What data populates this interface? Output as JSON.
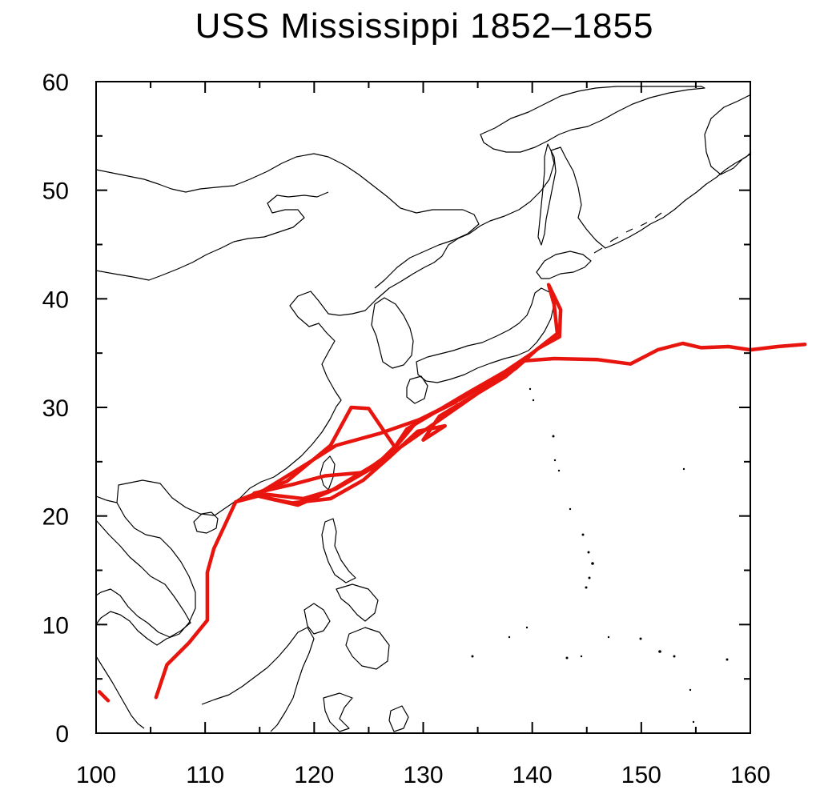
{
  "title": "USS Mississippi 1852–1855",
  "colors": {
    "route": "#e8150f",
    "frame": "#000000"
  },
  "map_data": {
    "projection": "equirectangular",
    "lon_range": [
      100,
      160
    ],
    "lat_range": [
      0,
      60
    ],
    "x_ticks": [
      100,
      110,
      120,
      130,
      140,
      150,
      160
    ],
    "y_ticks": [
      0,
      10,
      20,
      30,
      40,
      50,
      60
    ],
    "minor_step": 5,
    "route_segments": [
      [
        [
          100.3,
          3.8
        ],
        [
          101.1,
          3.0
        ]
      ],
      [
        [
          105.5,
          3.3
        ],
        [
          106.5,
          6.3
        ],
        [
          108.5,
          8.3
        ],
        [
          110.2,
          10.4
        ],
        [
          110.2,
          14.8
        ],
        [
          110.8,
          17.0
        ],
        [
          112.8,
          21.3
        ],
        [
          115.5,
          22.0
        ],
        [
          119.0,
          21.6
        ],
        [
          122.0,
          22.5
        ],
        [
          126.0,
          24.8
        ],
        [
          127.7,
          26.2
        ],
        [
          131.0,
          28.5
        ],
        [
          135.0,
          31.3
        ],
        [
          138.5,
          33.6
        ],
        [
          140.5,
          35.4
        ],
        [
          142.5,
          36.5
        ],
        [
          142.6,
          39.0
        ],
        [
          141.5,
          41.3
        ],
        [
          142.0,
          39.5
        ],
        [
          142.3,
          36.8
        ],
        [
          140.0,
          35.0
        ],
        [
          137.5,
          33.3
        ],
        [
          134.0,
          31.3
        ],
        [
          131.0,
          29.5
        ],
        [
          128.5,
          28.0
        ],
        [
          127.5,
          26.5
        ],
        [
          126.0,
          25.0
        ],
        [
          124.0,
          23.8
        ],
        [
          121.5,
          22.3
        ],
        [
          118.5,
          21.0
        ],
        [
          115.0,
          21.8
        ],
        [
          118.0,
          21.2
        ],
        [
          121.5,
          21.6
        ],
        [
          124.5,
          23.3
        ],
        [
          127.0,
          25.5
        ],
        [
          129.5,
          27.8
        ],
        [
          132.0,
          28.3
        ],
        [
          130.0,
          27.0
        ],
        [
          131.5,
          29.2
        ],
        [
          134.5,
          31.0
        ],
        [
          137.5,
          32.8
        ],
        [
          139.3,
          34.3
        ],
        [
          142.0,
          34.5
        ],
        [
          146.0,
          34.4
        ],
        [
          149.0,
          34.0
        ],
        [
          151.5,
          35.3
        ],
        [
          153.8,
          35.9
        ],
        [
          155.5,
          35.5
        ],
        [
          158.0,
          35.6
        ],
        [
          160.0,
          35.3
        ],
        [
          162.5,
          35.6
        ],
        [
          165.0,
          35.8
        ]
      ],
      [
        [
          113.2,
          21.5
        ],
        [
          117.5,
          23.2
        ],
        [
          121.5,
          26.5
        ],
        [
          123.4,
          30.0
        ],
        [
          125.0,
          29.9
        ],
        [
          127.5,
          26.2
        ]
      ],
      [
        [
          114.8,
          22.0
        ],
        [
          119.0,
          24.6
        ],
        [
          122.0,
          26.5
        ],
        [
          126.0,
          27.6
        ],
        [
          130.0,
          29.0
        ],
        [
          133.0,
          30.5
        ]
      ],
      [
        [
          114.5,
          22.1
        ],
        [
          118.0,
          22.9
        ],
        [
          121.0,
          23.7
        ],
        [
          124.5,
          24.0
        ],
        [
          127.0,
          25.8
        ],
        [
          129.5,
          28.8
        ],
        [
          133.5,
          30.8
        ],
        [
          137.5,
          33.1
        ],
        [
          140.0,
          35.0
        ]
      ]
    ]
  }
}
